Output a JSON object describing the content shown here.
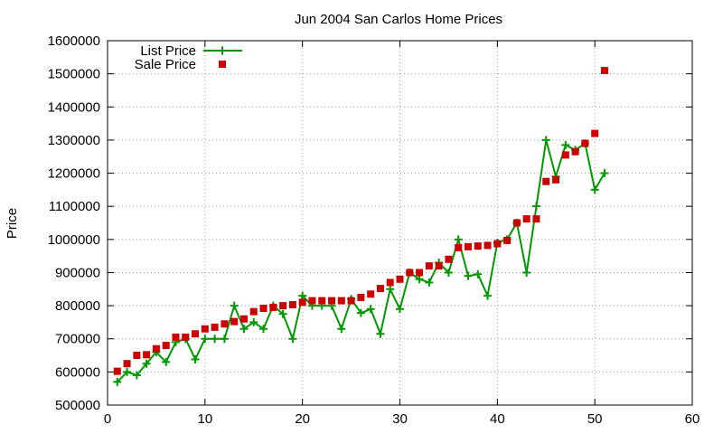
{
  "chart_data": {
    "type": "line",
    "title": "Jun 2004 San Carlos Home Prices",
    "xlabel": "",
    "ylabel": "Price",
    "xlim": [
      0,
      60
    ],
    "ylim": [
      500000,
      1600000
    ],
    "xticks": [
      0,
      10,
      20,
      30,
      40,
      50,
      60
    ],
    "yticks": [
      500000,
      600000,
      700000,
      800000,
      900000,
      1000000,
      1100000,
      1200000,
      1300000,
      1400000,
      1500000,
      1600000
    ],
    "grid": true,
    "legend_position": "top-left",
    "series": [
      {
        "name": "List Price",
        "style": "line-points",
        "color": "#009900",
        "marker": "plus",
        "x": [
          1,
          2,
          3,
          4,
          5,
          6,
          7,
          8,
          9,
          10,
          11,
          12,
          13,
          14,
          15,
          16,
          17,
          18,
          19,
          20,
          21,
          22,
          23,
          24,
          25,
          26,
          27,
          28,
          29,
          30,
          31,
          32,
          33,
          34,
          35,
          36,
          37,
          38,
          39,
          40,
          41,
          42,
          43,
          44,
          45,
          46,
          47,
          48,
          49,
          50,
          51
        ],
        "y": [
          570000,
          600000,
          590000,
          625000,
          660000,
          630000,
          690000,
          700000,
          638000,
          700000,
          700000,
          700000,
          800000,
          730000,
          750000,
          730000,
          800000,
          775000,
          700000,
          830000,
          800000,
          800000,
          800000,
          730000,
          820000,
          778000,
          790000,
          715000,
          850000,
          790000,
          900000,
          880000,
          870000,
          930000,
          900000,
          1000000,
          890000,
          895000,
          830000,
          990000,
          1000000,
          1050000,
          900000,
          1100000,
          1300000,
          1190000,
          1285000,
          1270000,
          1290000,
          1150000,
          1200000
        ]
      },
      {
        "name": "Sale Price",
        "style": "points",
        "color": "#cc0000",
        "marker": "square",
        "x": [
          1,
          2,
          3,
          4,
          5,
          6,
          7,
          8,
          9,
          10,
          11,
          12,
          13,
          14,
          15,
          16,
          17,
          18,
          19,
          20,
          21,
          22,
          23,
          24,
          25,
          26,
          27,
          28,
          29,
          30,
          31,
          32,
          33,
          34,
          35,
          36,
          37,
          38,
          39,
          40,
          41,
          42,
          43,
          44,
          45,
          46,
          47,
          48,
          49,
          50,
          51
        ],
        "y": [
          602000,
          625000,
          650000,
          652000,
          670000,
          680000,
          705000,
          705000,
          715000,
          730000,
          735000,
          745000,
          752000,
          760000,
          782000,
          792000,
          795000,
          800000,
          803000,
          810000,
          815000,
          815000,
          815000,
          815000,
          815000,
          825000,
          835000,
          852000,
          870000,
          880000,
          900000,
          900000,
          920000,
          920000,
          940000,
          975000,
          978000,
          980000,
          982000,
          987000,
          997000,
          1050000,
          1062000,
          1062000,
          1175000,
          1180000,
          1255000,
          1265000,
          1290000,
          1320000,
          1510000
        ]
      }
    ]
  }
}
